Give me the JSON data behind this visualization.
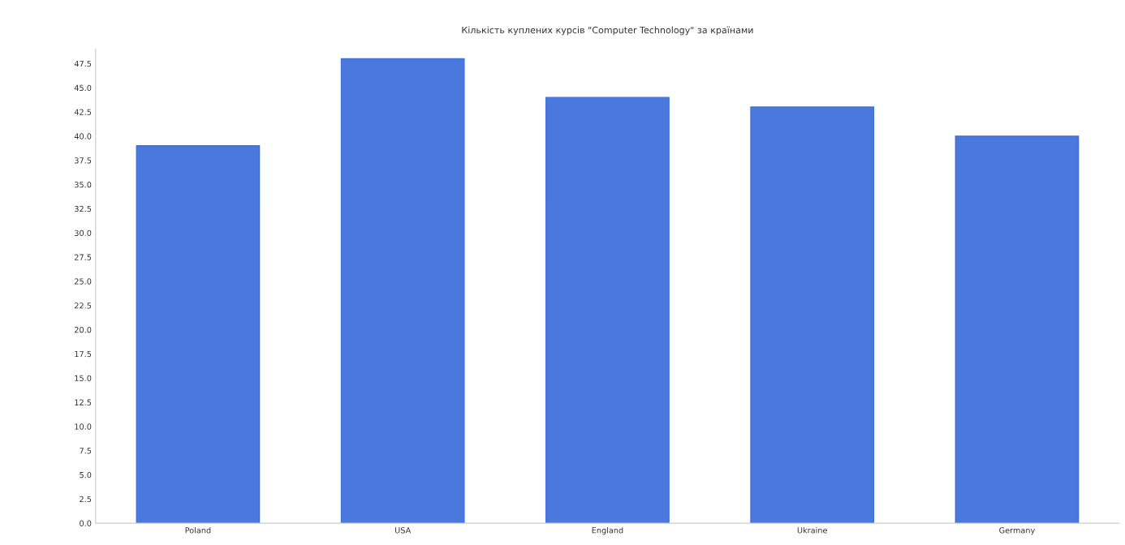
{
  "chart_data": {
    "type": "bar",
    "title": "Кількість куплених курсів \"Computer Technology\" за країнами",
    "categories": [
      "Poland",
      "USA",
      "England",
      "Ukraine",
      "Germany"
    ],
    "values": [
      39,
      48,
      44,
      43,
      40
    ],
    "color": "#4a78dc",
    "ylim": [
      0,
      49
    ],
    "yticks": [
      {
        "value": 0,
        "label": "0.0"
      },
      {
        "value": 2.5,
        "label": "2.5"
      },
      {
        "value": 5,
        "label": "5.0"
      },
      {
        "value": 7.5,
        "label": "7.5"
      },
      {
        "value": 10,
        "label": "10.0"
      },
      {
        "value": 12.5,
        "label": "12.5"
      },
      {
        "value": 15,
        "label": "15.0"
      },
      {
        "value": 17.5,
        "label": "17.5"
      },
      {
        "value": 20,
        "label": "20.0"
      },
      {
        "value": 22.5,
        "label": "22.5"
      },
      {
        "value": 25,
        "label": "25.0"
      },
      {
        "value": 27.5,
        "label": "27.5"
      },
      {
        "value": 30,
        "label": "30.0"
      },
      {
        "value": 32.5,
        "label": "32.5"
      },
      {
        "value": 35,
        "label": "35.0"
      },
      {
        "value": 37.5,
        "label": "37.5"
      },
      {
        "value": 40,
        "label": "40.0"
      },
      {
        "value": 42.5,
        "label": "42.5"
      },
      {
        "value": 45,
        "label": "45.0"
      },
      {
        "value": 47.5,
        "label": "47.5"
      }
    ],
    "grid": false
  }
}
